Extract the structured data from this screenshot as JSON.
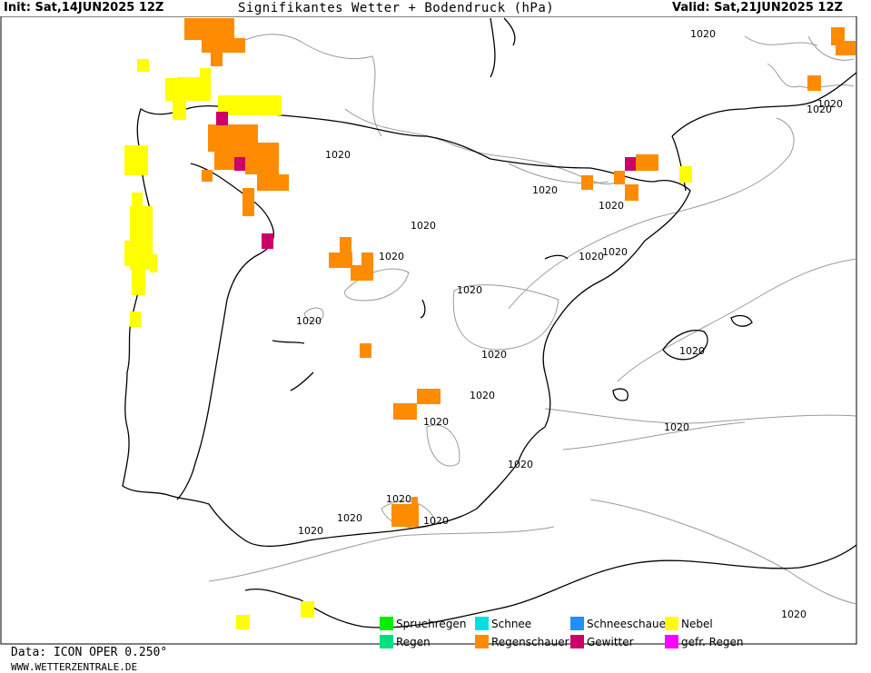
{
  "header": {
    "init": "Init: Sat,14JUN2025 12Z",
    "title": "Signifikantes Wetter +  Bodendruck (hPa)",
    "valid": "Valid: Sat,21JUN2025 12Z"
  },
  "footer": {
    "data_source": "Data: ICON OPER 0.250°",
    "website": "WWW.WETTERZENTRALE.DE"
  },
  "isobar_label": "1020",
  "legend": [
    {
      "label": "Spruehregen",
      "color": "#00ee00"
    },
    {
      "label": "Schnee",
      "color": "#00e0e0"
    },
    {
      "label": "Schneeschauer",
      "color": "#1e90ff"
    },
    {
      "label": "Nebel",
      "color": "#ffff00"
    },
    {
      "label": "Regen",
      "color": "#00e080"
    },
    {
      "label": "Regenschauer",
      "color": "#ff8c00"
    },
    {
      "label": "Gewitter",
      "color": "#cc0066"
    },
    {
      "label": "gefr. Regen",
      "color": "#ff00ff"
    }
  ]
}
